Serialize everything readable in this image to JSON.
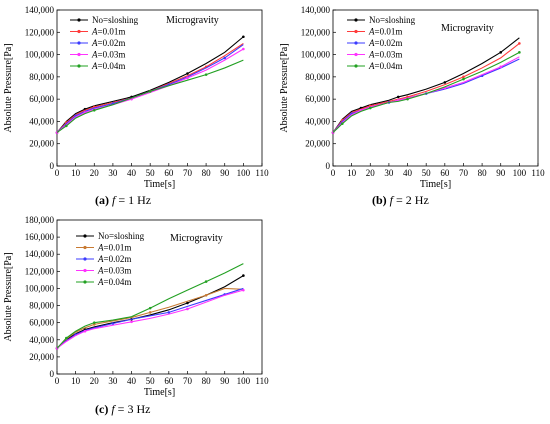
{
  "chart_data": [
    {
      "id": "a",
      "type": "line",
      "caption": {
        "tag": "(a)",
        "var": "f",
        "rest": " = 1 Hz"
      },
      "annotation": "Microgravity",
      "xlabel": "Time[s]",
      "ylabel": "Absolute Pressure[Pa]",
      "xlim": [
        0,
        110
      ],
      "ylim": [
        0,
        140000
      ],
      "xticks": [
        0,
        10,
        20,
        30,
        40,
        50,
        60,
        70,
        80,
        90,
        100,
        110
      ],
      "yticks": [
        0,
        20000,
        40000,
        60000,
        80000,
        100000,
        120000,
        140000
      ],
      "xtick_labels": [
        "0",
        "10",
        "20",
        "30",
        "40",
        "50",
        "60",
        "70",
        "80",
        "90",
        "100",
        "110"
      ],
      "ytick_labels": [
        "0",
        "20,000",
        "40,000",
        "60,000",
        "80,000",
        "100,000",
        "120,000",
        "140,000"
      ],
      "x": [
        0,
        5,
        10,
        15,
        20,
        30,
        40,
        50,
        60,
        70,
        80,
        90,
        100
      ],
      "series": [
        {
          "name": "No=sloshing",
          "color": "#000000",
          "values": [
            30000,
            40000,
            47000,
            51000,
            54000,
            58000,
            62000,
            68000,
            75000,
            83000,
            92000,
            102000,
            116000
          ]
        },
        {
          "name": "A=0.01m",
          "color": "#ff3b3b",
          "values": [
            30000,
            39000,
            46000,
            50000,
            53000,
            57000,
            61000,
            67000,
            74000,
            81000,
            89000,
            99000,
            110000
          ]
        },
        {
          "name": "A=0.02m",
          "color": "#3b3bff",
          "values": [
            30000,
            38000,
            45000,
            49000,
            52000,
            56000,
            61000,
            67000,
            73000,
            80000,
            88000,
            97000,
            109000
          ]
        },
        {
          "name": "A=0.03m",
          "color": "#ff33ff",
          "values": [
            30000,
            37000,
            44000,
            48000,
            51000,
            55000,
            60000,
            66000,
            72000,
            79000,
            86000,
            95000,
            105000
          ]
        },
        {
          "name": "A=0.04m",
          "color": "#22a022",
          "values": [
            30000,
            36000,
            43000,
            47000,
            50000,
            55000,
            61000,
            67000,
            72000,
            77000,
            82000,
            88000,
            95000
          ]
        }
      ]
    },
    {
      "id": "b",
      "type": "line",
      "caption": {
        "tag": "(b)",
        "var": "f",
        "rest": " = 2 Hz"
      },
      "annotation": "Microgravity",
      "xlabel": "Time[s]",
      "ylabel": "Absolute Pressure[Pa]",
      "xlim": [
        0,
        110
      ],
      "ylim": [
        0,
        140000
      ],
      "xticks": [
        0,
        10,
        20,
        30,
        40,
        50,
        60,
        70,
        80,
        90,
        100,
        110
      ],
      "yticks": [
        0,
        20000,
        40000,
        60000,
        80000,
        100000,
        120000,
        140000
      ],
      "xtick_labels": [
        "0",
        "10",
        "20",
        "30",
        "40",
        "50",
        "60",
        "70",
        "80",
        "90",
        "100",
        "110"
      ],
      "ytick_labels": [
        "0",
        "20,000",
        "40,000",
        "60,000",
        "80,000",
        "100,000",
        "120,000",
        "140,000"
      ],
      "x": [
        0,
        5,
        10,
        15,
        20,
        30,
        35,
        40,
        50,
        60,
        70,
        80,
        90,
        100
      ],
      "series": [
        {
          "name": "No=sloshing",
          "color": "#000000",
          "values": [
            30000,
            42000,
            49000,
            52000,
            55000,
            59000,
            62000,
            64000,
            69000,
            75000,
            83000,
            92000,
            102000,
            115000
          ]
        },
        {
          "name": "A=0.01m",
          "color": "#ff3b3b",
          "values": [
            30000,
            41000,
            48000,
            51000,
            54000,
            58000,
            60000,
            62000,
            67000,
            73000,
            80000,
            88000,
            97000,
            110000
          ]
        },
        {
          "name": "A=0.02m",
          "color": "#3b3bff",
          "values": [
            30000,
            40000,
            47000,
            50000,
            53000,
            57000,
            59000,
            61000,
            65000,
            69000,
            74000,
            81000,
            88000,
            96000
          ]
        },
        {
          "name": "A=0.03m",
          "color": "#ff33ff",
          "values": [
            30000,
            39000,
            46000,
            50000,
            53000,
            57000,
            59000,
            61000,
            65000,
            70000,
            75000,
            82000,
            89000,
            98000
          ]
        },
        {
          "name": "A=0.04m",
          "color": "#22a022",
          "values": [
            30000,
            38000,
            45000,
            49000,
            52000,
            57000,
            58000,
            60000,
            65000,
            71000,
            78000,
            85000,
            93000,
            102000
          ]
        }
      ]
    },
    {
      "id": "c",
      "type": "line",
      "caption": {
        "tag": "(c)",
        "var": "f",
        "rest": " = 3 Hz"
      },
      "annotation": "Microgravity",
      "xlabel": "Time[s]",
      "ylabel": "Absolute Pressure[Pa]",
      "xlim": [
        0,
        110
      ],
      "ylim": [
        0,
        180000
      ],
      "xticks": [
        0,
        10,
        20,
        30,
        40,
        50,
        60,
        70,
        80,
        90,
        100,
        110
      ],
      "yticks": [
        0,
        20000,
        40000,
        60000,
        80000,
        100000,
        120000,
        140000,
        160000,
        180000
      ],
      "xtick_labels": [
        "0",
        "10",
        "20",
        "30",
        "40",
        "50",
        "60",
        "70",
        "80",
        "90",
        "100",
        "110"
      ],
      "ytick_labels": [
        "0",
        "20,000",
        "40,000",
        "60,000",
        "80,000",
        "100,000",
        "120,000",
        "140,000",
        "160,000",
        "180,000"
      ],
      "x": [
        0,
        5,
        10,
        15,
        20,
        30,
        40,
        50,
        60,
        70,
        80,
        90,
        100
      ],
      "series": [
        {
          "name": "No=sloshing",
          "color": "#000000",
          "values": [
            30000,
            40000,
            47000,
            52000,
            55000,
            60000,
            64000,
            69000,
            75000,
            83000,
            92000,
            102000,
            115000
          ]
        },
        {
          "name": "A=0.01m",
          "color": "#c87a32",
          "values": [
            30000,
            41000,
            49000,
            54000,
            58000,
            62000,
            66000,
            72000,
            78000,
            85000,
            92000,
            100000,
            99000
          ]
        },
        {
          "name": "A=0.02m",
          "color": "#3b3bff",
          "values": [
            30000,
            39000,
            46000,
            51000,
            54000,
            59000,
            64000,
            68000,
            72000,
            79000,
            86000,
            93000,
            100000
          ]
        },
        {
          "name": "A=0.03m",
          "color": "#ff33ff",
          "values": [
            30000,
            38000,
            45000,
            50000,
            53000,
            57000,
            61000,
            65000,
            70000,
            76000,
            84000,
            92000,
            98000
          ]
        },
        {
          "name": "A=0.04m",
          "color": "#22a022",
          "values": [
            30000,
            42000,
            50000,
            56000,
            60000,
            63000,
            67000,
            77000,
            88000,
            98000,
            108000,
            118000,
            129000
          ]
        }
      ]
    }
  ]
}
